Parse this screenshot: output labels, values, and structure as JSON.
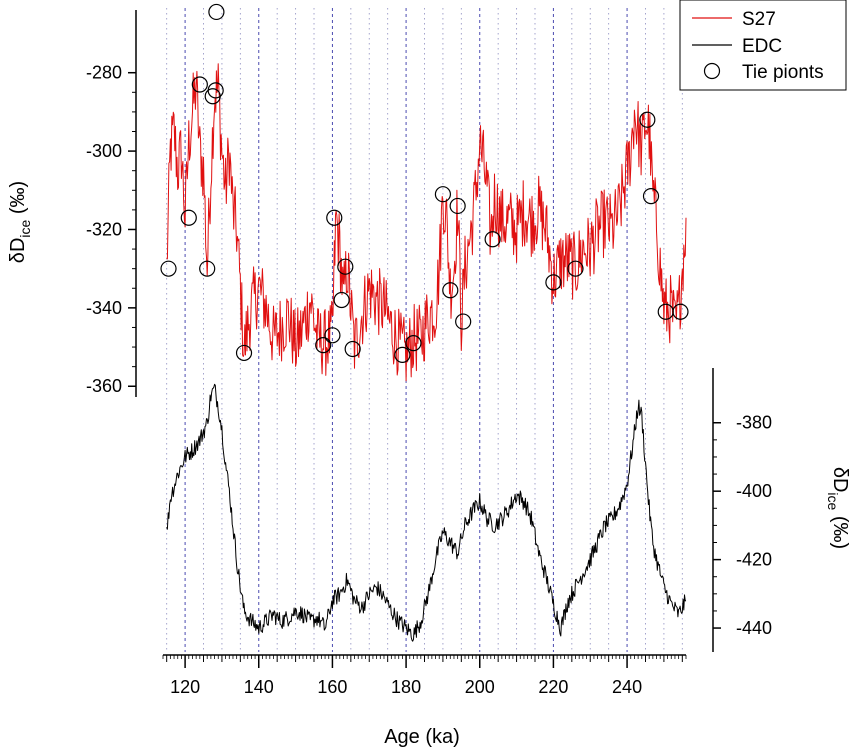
{
  "chart_data": {
    "type": "line",
    "title": "",
    "xlabel": "Age (ka)",
    "xlim": [
      114,
      256
    ],
    "x_ticks": [
      120,
      140,
      160,
      180,
      200,
      220,
      240
    ],
    "x_ticks_labels": [
      "120",
      "140",
      "160",
      "180",
      "200",
      "220",
      "240"
    ],
    "minor_x_step": 5,
    "left_axis": {
      "label_main": "δD",
      "label_sub": "ice",
      "label_unit": " (‰)",
      "ylim": [
        -363,
        -264
      ],
      "ticks": [
        -280,
        -300,
        -320,
        -340,
        -360
      ],
      "tick_labels": [
        "-280",
        "-300",
        "-320",
        "-340",
        "-360"
      ]
    },
    "right_axis": {
      "label_main": "δD",
      "label_sub": "ice",
      "label_unit": " (‰)",
      "ylim": [
        -447,
        -364
      ],
      "ticks": [
        -380,
        -400,
        -420,
        -440
      ],
      "tick_labels": [
        "-380",
        "-400",
        "-420",
        "-440"
      ]
    },
    "legend_position": "top-right",
    "legend": [
      {
        "label": "S27",
        "style": "red-line"
      },
      {
        "label": "EDC",
        "style": "black-line"
      },
      {
        "label": "Tie pionts",
        "style": "circle"
      }
    ],
    "series": [
      {
        "name": "S27",
        "axis": "left",
        "color": "#e01010",
        "x": [
          115,
          116,
          117,
          118,
          119,
          120,
          121,
          122,
          123,
          124,
          125,
          126,
          127,
          128,
          128.5,
          129,
          130,
          131,
          132,
          133,
          134,
          135,
          136,
          137,
          138,
          140,
          142,
          144,
          146,
          148,
          150,
          152,
          154,
          156,
          158,
          160,
          160.5,
          161,
          162,
          163,
          164,
          165,
          166,
          168,
          170,
          172,
          174,
          176,
          178,
          180,
          182,
          184,
          186,
          188,
          189,
          190,
          191,
          192,
          193,
          194,
          195,
          196,
          198,
          199,
          200,
          201,
          202,
          203,
          204,
          206,
          208,
          210,
          212,
          214,
          216,
          218,
          220,
          222,
          224,
          226,
          228,
          230,
          232,
          234,
          236,
          238,
          240,
          241,
          242,
          243,
          244,
          245,
          246,
          247,
          248,
          249,
          250,
          251,
          252,
          253,
          254,
          255,
          256
        ],
        "y": [
          -330,
          -300,
          -295,
          -305,
          -300,
          -317,
          -298,
          -290,
          -283,
          -300,
          -305,
          -330,
          -305,
          -285,
          -285,
          -284,
          -300,
          -310,
          -300,
          -315,
          -320,
          -335,
          -351,
          -345,
          -340,
          -335,
          -340,
          -348,
          -345,
          -342,
          -350,
          -345,
          -338,
          -348,
          -349,
          -347,
          -330,
          -317,
          -325,
          -338,
          -329,
          -340,
          -350,
          -342,
          -335,
          -338,
          -340,
          -345,
          -349,
          -352,
          -348,
          -348,
          -342,
          -340,
          -330,
          -311,
          -318,
          -335,
          -330,
          -314,
          -343,
          -330,
          -318,
          -310,
          -298,
          -303,
          -310,
          -322,
          -312,
          -318,
          -318,
          -320,
          -315,
          -318,
          -315,
          -320,
          -333,
          -328,
          -328,
          -330,
          -325,
          -325,
          -320,
          -318,
          -320,
          -315,
          -305,
          -300,
          -290,
          -295,
          -300,
          -292,
          -295,
          -311,
          -318,
          -330,
          -340,
          -341,
          -340,
          -345,
          -341,
          -330,
          -317
        ],
        "noise": 9
      },
      {
        "name": "EDC",
        "axis": "right",
        "color": "#000000",
        "x": [
          115,
          116,
          118,
          120,
          122,
          124,
          126,
          127,
          128,
          129,
          130,
          131,
          132,
          133,
          134,
          135,
          136,
          138,
          140,
          142,
          144,
          146,
          148,
          150,
          152,
          154,
          156,
          158,
          160,
          162,
          164,
          166,
          168,
          170,
          172,
          174,
          176,
          178,
          180,
          182,
          184,
          186,
          188,
          190,
          192,
          194,
          196,
          198,
          200,
          202,
          204,
          206,
          208,
          210,
          212,
          214,
          216,
          218,
          220,
          222,
          224,
          226,
          228,
          230,
          232,
          234,
          236,
          238,
          240,
          242,
          243,
          244,
          245,
          246,
          247,
          248,
          250,
          252,
          254,
          256
        ],
        "y": [
          -412,
          -402,
          -395,
          -390,
          -388,
          -385,
          -380,
          -372,
          -370,
          -375,
          -382,
          -392,
          -400,
          -410,
          -420,
          -428,
          -435,
          -438,
          -440,
          -438,
          -436,
          -438,
          -437,
          -435,
          -436,
          -438,
          -437,
          -440,
          -432,
          -430,
          -426,
          -432,
          -434,
          -430,
          -428,
          -431,
          -435,
          -438,
          -440,
          -442,
          -438,
          -430,
          -420,
          -412,
          -415,
          -418,
          -410,
          -406,
          -403,
          -408,
          -410,
          -408,
          -405,
          -401,
          -403,
          -408,
          -418,
          -425,
          -433,
          -440,
          -432,
          -428,
          -424,
          -420,
          -415,
          -410,
          -408,
          -404,
          -398,
          -383,
          -375,
          -378,
          -392,
          -405,
          -415,
          -420,
          -428,
          -433,
          -436,
          -432
        ],
        "noise": 2.5
      }
    ],
    "tie_points": [
      {
        "x": 115.5,
        "y": -330
      },
      {
        "x": 121,
        "y": -317
      },
      {
        "x": 124,
        "y": -283
      },
      {
        "x": 126,
        "y": -330
      },
      {
        "x": 127.5,
        "y": -286
      },
      {
        "x": 128.3,
        "y": -284.5
      },
      {
        "x": 128.5,
        "y": -264.5
      },
      {
        "x": 136,
        "y": -351.5
      },
      {
        "x": 157.5,
        "y": -349.5
      },
      {
        "x": 160,
        "y": -347
      },
      {
        "x": 160.5,
        "y": -317
      },
      {
        "x": 162.5,
        "y": -338
      },
      {
        "x": 163.5,
        "y": -329.5
      },
      {
        "x": 165.5,
        "y": -350.5
      },
      {
        "x": 179,
        "y": -352
      },
      {
        "x": 182,
        "y": -349
      },
      {
        "x": 190,
        "y": -311
      },
      {
        "x": 192,
        "y": -335.5
      },
      {
        "x": 194,
        "y": -314
      },
      {
        "x": 195.5,
        "y": -343.5
      },
      {
        "x": 203.5,
        "y": -322.5
      },
      {
        "x": 220,
        "y": -333.5
      },
      {
        "x": 226,
        "y": -330
      },
      {
        "x": 245.5,
        "y": -292
      },
      {
        "x": 246.5,
        "y": -311.5
      },
      {
        "x": 250.5,
        "y": -341
      },
      {
        "x": 254.5,
        "y": -341
      }
    ]
  }
}
